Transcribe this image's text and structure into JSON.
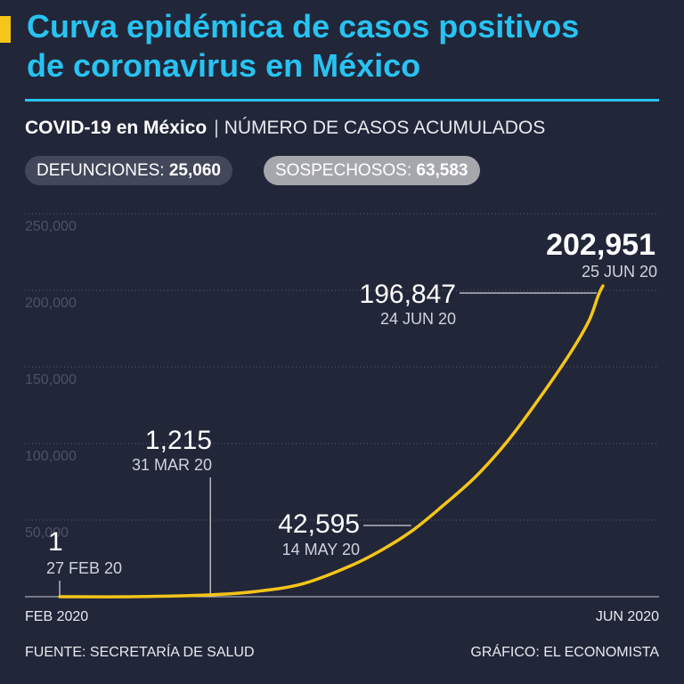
{
  "header": {
    "title_line1": "Curva epidémica de casos positivos",
    "title_line2": "de coronavirus en México",
    "subtitle_bold": "COVID-19 en México",
    "subtitle_sep": "|",
    "subtitle_light": "NÚMERO DE CASOS ACUMULADOS"
  },
  "pills": {
    "deaths_label": "DEFUNCIONES:",
    "deaths_value": "25,060",
    "suspects_label": "SOSPECHOSOS:",
    "suspects_value": "63,583"
  },
  "footer": {
    "source": "FUENTE: SECRETARÍA DE SALUD",
    "credit": "GRÁFICO: EL ECONOMISTA"
  },
  "colors": {
    "background": "#222639",
    "title": "#27c3f2",
    "line": "#f5c518",
    "grid": "#5a5e70",
    "tick": "#4d5166"
  },
  "chart_data": {
    "type": "line",
    "title": "",
    "xlabel": "",
    "ylabel": "",
    "x_start_label": "FEB 2020",
    "x_end_label": "JUN 2020",
    "ylim": [
      0,
      250000
    ],
    "yticks": [
      {
        "value": 50000,
        "label": "50,000"
      },
      {
        "value": 100000,
        "label": "100,000"
      },
      {
        "value": 150000,
        "label": "150,000"
      },
      {
        "value": 200000,
        "label": "200,000"
      },
      {
        "value": 250000,
        "label": "250,000"
      }
    ],
    "grid": true,
    "series": [
      {
        "points": [
          {
            "date": "2020-02-27",
            "value": 1
          },
          {
            "date": "2020-03-15",
            "value": 53
          },
          {
            "date": "2020-03-31",
            "value": 1215
          },
          {
            "date": "2020-04-10",
            "value": 3441
          },
          {
            "date": "2020-04-20",
            "value": 8261
          },
          {
            "date": "2020-04-30",
            "value": 19224
          },
          {
            "date": "2020-05-07",
            "value": 29616
          },
          {
            "date": "2020-05-14",
            "value": 42595
          },
          {
            "date": "2020-05-21",
            "value": 59567
          },
          {
            "date": "2020-05-28",
            "value": 78023
          },
          {
            "date": "2020-06-04",
            "value": 101238
          },
          {
            "date": "2020-06-11",
            "value": 129184
          },
          {
            "date": "2020-06-18",
            "value": 159793
          },
          {
            "date": "2020-06-22",
            "value": 180545
          },
          {
            "date": "2020-06-24",
            "value": 196847
          },
          {
            "date": "2020-06-25",
            "value": 202951
          }
        ]
      }
    ],
    "annotations": [
      {
        "date": "2020-02-27",
        "value": 1,
        "value_label": "1",
        "date_label": "27 FEB 20"
      },
      {
        "date": "2020-03-31",
        "value": 1215,
        "value_label": "1,215",
        "date_label": "31 MAR 20"
      },
      {
        "date": "2020-05-14",
        "value": 42595,
        "value_label": "42,595",
        "date_label": "14 MAY 20"
      },
      {
        "date": "2020-06-24",
        "value": 196847,
        "value_label": "196,847",
        "date_label": "24 JUN 20"
      },
      {
        "date": "2020-06-25",
        "value": 202951,
        "value_label": "202,951",
        "date_label": "25 JUN 20"
      }
    ]
  }
}
